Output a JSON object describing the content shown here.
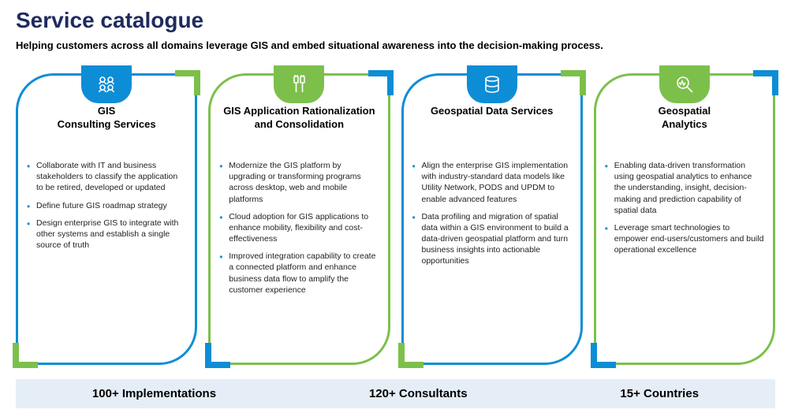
{
  "title": "Service catalogue",
  "subtitle": "Helping customers across all domains leverage GIS and embed situational awareness into the decision-making process.",
  "colors": {
    "blue": "#0d8dd6",
    "green": "#7cc04b",
    "title": "#1f2a5e",
    "stats_bg": "#e5eef7"
  },
  "cards": [
    {
      "variant": "blue",
      "icon": "people-icon",
      "title": "GIS\nConsulting Services",
      "bullets": [
        "Collaborate with IT and business stakeholders to classify the application to be retired, developed or updated",
        "Define future GIS roadmap strategy",
        "Design enterprise GIS to integrate with other systems and establish a single source of truth"
      ]
    },
    {
      "variant": "green",
      "icon": "cables-icon",
      "title": "GIS Application Rationalization and Consolidation",
      "bullets": [
        "Modernize the GIS platform by upgrading or transforming programs across desktop, web and mobile platforms",
        "Cloud adoption for GIS applications to enhance mobility, flexibility and cost-effectiveness",
        "Improved integration capability to create a connected platform and enhance business data flow to amplify the customer experience"
      ]
    },
    {
      "variant": "blue",
      "icon": "database-icon",
      "title": "Geospatial Data Services",
      "bullets": [
        "Align the enterprise GIS implementation with industry-standard data models like Utility Network, PODS and UPDM to enable advanced features",
        "Data profiling and migration of spatial data within a GIS environment to build a data-driven geospatial platform and turn business insights into actionable opportunities"
      ]
    },
    {
      "variant": "green",
      "icon": "analytics-icon",
      "title": "Geospatial\nAnalytics",
      "bullets": [
        "Enabling data-driven transformation using geospatial analytics to enhance the understanding, insight, decision-making and prediction capability of spatial data",
        "Leverage smart technologies to empower end-users/customers and build operational excellence"
      ]
    }
  ],
  "stats": [
    "100+ Implementations",
    "120+ Consultants",
    "15+ Countries"
  ]
}
